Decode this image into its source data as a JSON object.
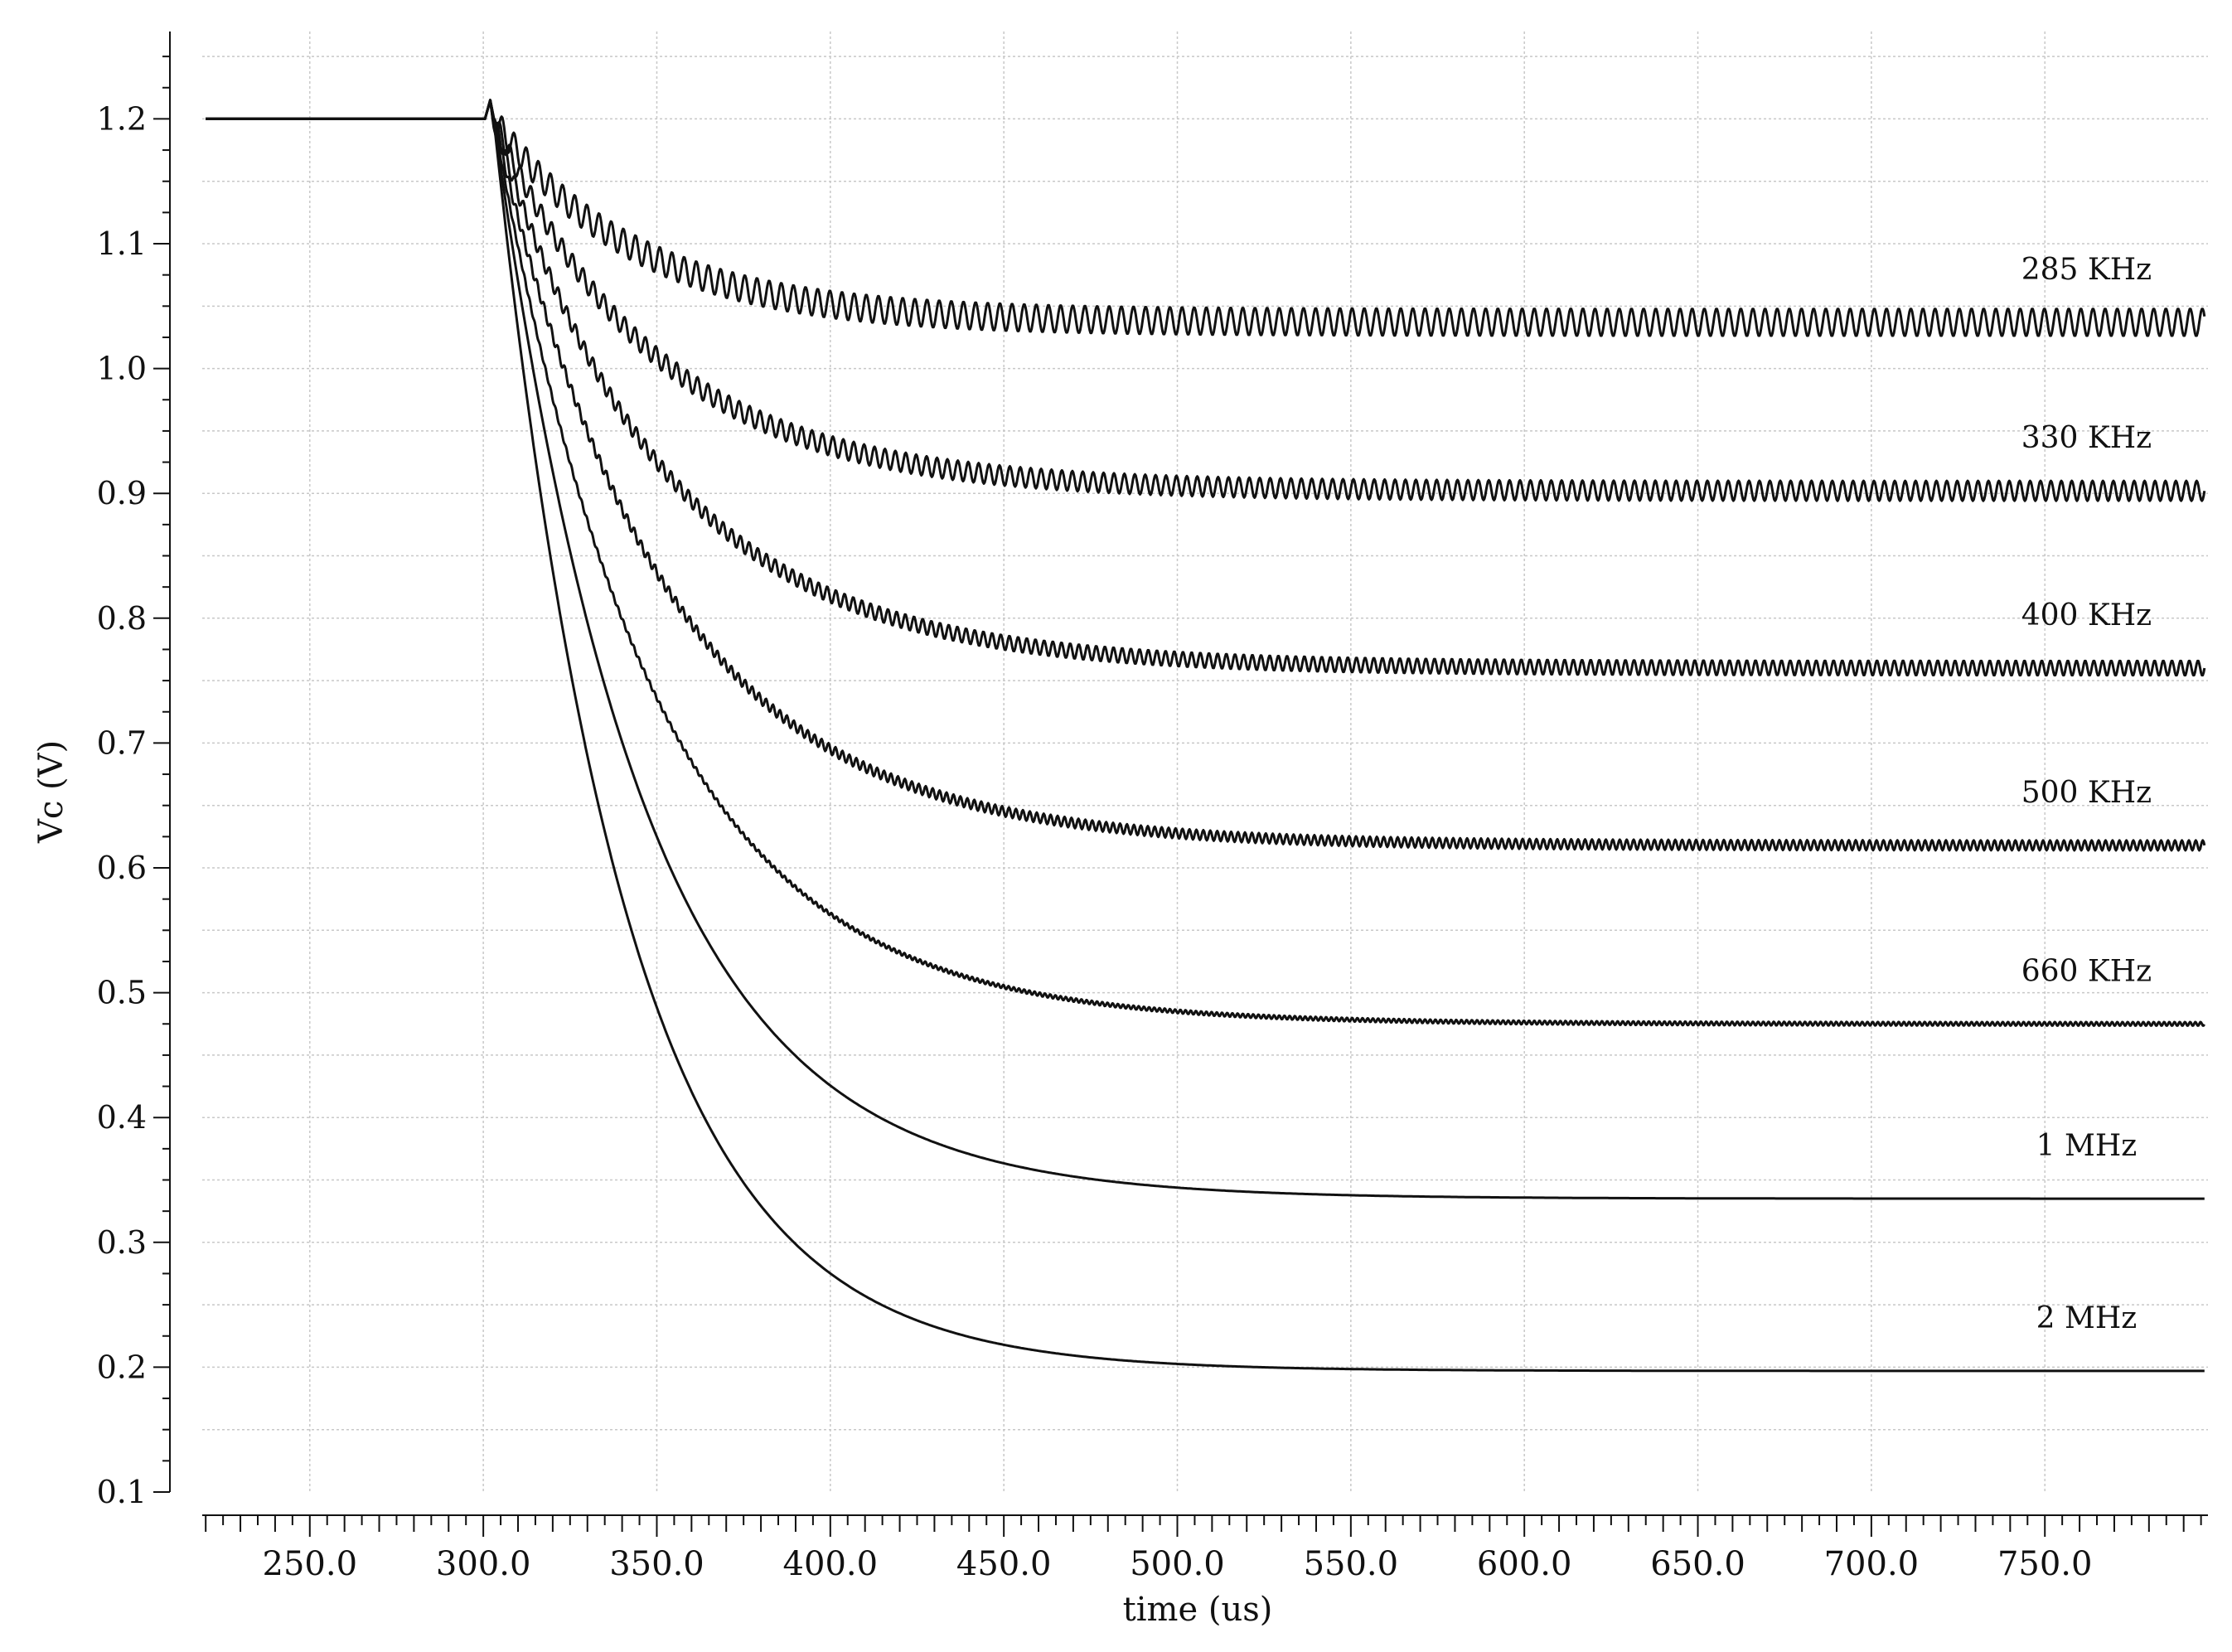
{
  "chart_data": {
    "type": "line",
    "title": "",
    "xlabel": "time (us)",
    "ylabel": "Vc (V)",
    "xlim": [
      219,
      797
    ],
    "ylim": [
      0.1,
      1.27
    ],
    "x_ticks": [
      250.0,
      300.0,
      350.0,
      400.0,
      450.0,
      500.0,
      550.0,
      600.0,
      650.0,
      700.0,
      750.0
    ],
    "x_tick_labels": [
      "250.0",
      "300.0",
      "350.0",
      "400.0",
      "450.0",
      "500.0",
      "550.0",
      "600.0",
      "650.0",
      "700.0",
      "750.0"
    ],
    "y_ticks": [
      0.1,
      0.2,
      0.3,
      0.4,
      0.5,
      0.6,
      0.7,
      0.8,
      0.9,
      1.0,
      1.1,
      1.2
    ],
    "y_tick_labels": [
      "0.1",
      "0.2",
      "0.3",
      "0.4",
      "0.5",
      "0.6",
      "0.7",
      "0.8",
      "0.9",
      "1.0",
      "1.1",
      "1.2"
    ],
    "grid": true,
    "legend": "none (inline labels at right)",
    "line_color": "#111111",
    "grid_color": "#c8c8c8",
    "step_time": 301,
    "initial_value": 1.2,
    "series": [
      {
        "name": "285 KHz",
        "final": 1.037,
        "tau": 40,
        "ripple": 0.011,
        "ripple_period": 3.5
      },
      {
        "name": "330 KHz",
        "final": 0.902,
        "tau": 46,
        "ripple": 0.008,
        "ripple_period": 3.0
      },
      {
        "name": "400 KHz",
        "final": 0.76,
        "tau": 48,
        "ripple": 0.006,
        "ripple_period": 2.5
      },
      {
        "name": "500 KHz",
        "final": 0.618,
        "tau": 48,
        "ripple": 0.004,
        "ripple_period": 2.0
      },
      {
        "name": "660 KHz",
        "final": 0.475,
        "tau": 46,
        "ripple": 0.0015,
        "ripple_period": 1.5
      },
      {
        "name": "1 MHz",
        "final": 0.335,
        "tau": 43,
        "ripple": 0.0,
        "ripple_period": 1.0
      },
      {
        "name": "2 MHz",
        "final": 0.197,
        "tau": 38,
        "ripple": 0.0,
        "ripple_period": 0.5
      }
    ],
    "series_labels": [
      "285 KHz",
      "330 KHz",
      "400 KHz",
      "500 KHz",
      "660 KHz",
      "1 MHz",
      "2 MHz"
    ]
  }
}
